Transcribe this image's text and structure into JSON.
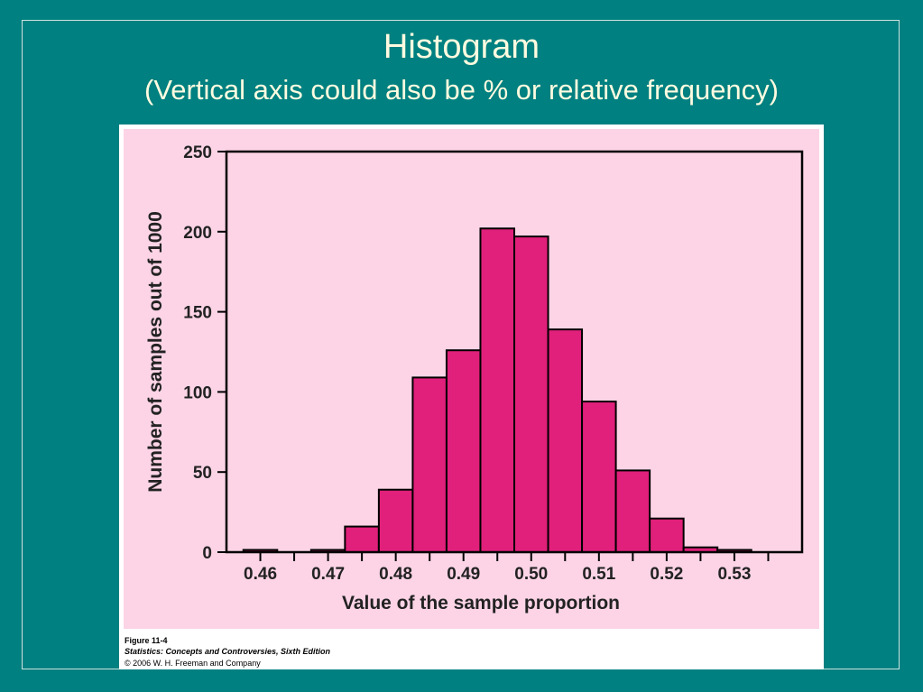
{
  "slide": {
    "title": "Histogram",
    "subtitle": "(Vertical axis could also be % or relative frequency)",
    "background_color": "#008080",
    "title_color": "#fffbe0"
  },
  "figure": {
    "caption_figure": "Figure 11-4",
    "caption_book": "Statistics: Concepts and Controversies, Sixth Edition",
    "caption_copyright": "© 2006 W. H. Freeman and Company",
    "panel_color": "#fcd4e6",
    "bar_color": "#e0207a"
  },
  "chart_data": {
    "type": "bar",
    "title": "",
    "xlabel": "Value of the sample proportion",
    "ylabel": "Number of samples out of 1000",
    "xlim": [
      0.455,
      0.54
    ],
    "ylim": [
      0,
      250
    ],
    "xticks": [
      "0.46",
      "0.47",
      "0.48",
      "0.49",
      "0.50",
      "0.51",
      "0.52",
      "0.53"
    ],
    "yticks": [
      "0",
      "50",
      "100",
      "150",
      "200",
      "250"
    ],
    "grid": false,
    "bin_width": 0.005,
    "bins": [
      {
        "x": 0.46,
        "value": 1
      },
      {
        "x": 0.465,
        "value": 0
      },
      {
        "x": 0.47,
        "value": 1
      },
      {
        "x": 0.475,
        "value": 16
      },
      {
        "x": 0.48,
        "value": 39
      },
      {
        "x": 0.485,
        "value": 109
      },
      {
        "x": 0.49,
        "value": 126
      },
      {
        "x": 0.495,
        "value": 202
      },
      {
        "x": 0.5,
        "value": 197
      },
      {
        "x": 0.505,
        "value": 139
      },
      {
        "x": 0.51,
        "value": 94
      },
      {
        "x": 0.515,
        "value": 51
      },
      {
        "x": 0.52,
        "value": 21
      },
      {
        "x": 0.525,
        "value": 3
      },
      {
        "x": 0.53,
        "value": 1
      }
    ]
  }
}
